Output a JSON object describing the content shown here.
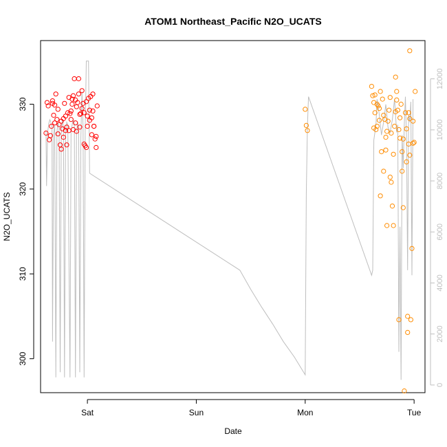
{
  "chart_data": {
    "type": "scatter",
    "title": "ATOM1 Northeast_Pacific N2O_UCATS",
    "xlabel": "Date",
    "ylabel": "N2O_UCATS",
    "x_ticks": [
      {
        "x": 1.0,
        "label": "Sat"
      },
      {
        "x": 2.0,
        "label": "Sun"
      },
      {
        "x": 3.0,
        "label": "Mon"
      },
      {
        "x": 4.0,
        "label": "Tue"
      }
    ],
    "xlim": [
      0.57,
      4.1
    ],
    "ylim": [
      296,
      337.5
    ],
    "y_ticks": [
      300,
      310,
      320,
      330
    ],
    "y2lim": [
      -300,
      13500
    ],
    "y2_ticks": [
      0,
      2000,
      4000,
      6000,
      8000,
      10000,
      12000
    ],
    "colors": {
      "series_1": "#ff0000",
      "series_2": "#ff8c00",
      "altitude": "#bebebe",
      "frame": "#000000"
    },
    "series": [
      {
        "color": "#ff0000",
        "points": [
          [
            0.62,
            326.6
          ],
          [
            0.63,
            330.2
          ],
          [
            0.64,
            329.8
          ],
          [
            0.65,
            325.8
          ],
          [
            0.66,
            326.3
          ],
          [
            0.67,
            327.4
          ],
          [
            0.68,
            330.4
          ],
          [
            0.69,
            328.7
          ],
          [
            0.7,
            327.8
          ],
          [
            0.71,
            331.2
          ],
          [
            0.72,
            328.2
          ],
          [
            0.73,
            329.4
          ],
          [
            0.74,
            327.6
          ],
          [
            0.75,
            325.2
          ],
          [
            0.76,
            324.7
          ],
          [
            0.77,
            327.1
          ],
          [
            0.78,
            328.3
          ],
          [
            0.79,
            330.1
          ],
          [
            0.8,
            328.6
          ],
          [
            0.81,
            327.3
          ],
          [
            0.82,
            329.0
          ],
          [
            0.83,
            326.9
          ],
          [
            0.84,
            328.9
          ],
          [
            0.85,
            329.2
          ],
          [
            0.86,
            330.6
          ],
          [
            0.87,
            331.0
          ],
          [
            0.88,
            333.0
          ],
          [
            0.89,
            327.8
          ],
          [
            0.9,
            329.7
          ],
          [
            0.91,
            330.2
          ],
          [
            0.92,
            333.0
          ],
          [
            0.93,
            327.3
          ],
          [
            0.94,
            328.9
          ],
          [
            0.95,
            331.6
          ],
          [
            0.96,
            330.1
          ],
          [
            0.97,
            329.0
          ],
          [
            0.98,
            325.1
          ],
          [
            0.99,
            324.9
          ],
          [
            1.0,
            327.4
          ],
          [
            1.01,
            330.7
          ],
          [
            1.02,
            329.3
          ],
          [
            1.03,
            330.9
          ],
          [
            1.04,
            328.4
          ],
          [
            1.05,
            331.2
          ],
          [
            1.06,
            327.4
          ],
          [
            1.07,
            325.9
          ],
          [
            1.08,
            324.9
          ],
          [
            1.09,
            329.8
          ],
          [
            0.73,
            326.5
          ],
          [
            0.78,
            326.1
          ],
          [
            0.83,
            330.8
          ],
          [
            0.87,
            327.0
          ],
          [
            0.92,
            331.2
          ],
          [
            0.97,
            325.3
          ],
          [
            1.02,
            328.1
          ],
          [
            1.06,
            327.4
          ],
          [
            0.76,
            328.0
          ],
          [
            0.81,
            325.2
          ],
          [
            0.86,
            330.0
          ],
          [
            0.9,
            326.8
          ],
          [
            0.95,
            329.5
          ],
          [
            1.0,
            328.6
          ],
          [
            1.04,
            326.4
          ],
          [
            0.7,
            329.9
          ],
          [
            0.8,
            326.9
          ],
          [
            0.85,
            328.2
          ],
          [
            0.89,
            330.5
          ],
          [
            0.93,
            328.8
          ],
          [
            0.99,
            330.3
          ],
          [
            1.05,
            329.2
          ],
          [
            1.08,
            326.2
          ],
          [
            0.68,
            330.1
          ]
        ]
      },
      {
        "color": "#ff8c00",
        "points": [
          [
            3.0,
            329.4
          ],
          [
            3.01,
            327.5
          ],
          [
            3.02,
            326.9
          ],
          [
            3.61,
            332.1
          ],
          [
            3.62,
            331.0
          ],
          [
            3.63,
            330.2
          ],
          [
            3.64,
            329.0
          ],
          [
            3.65,
            327.0
          ],
          [
            3.66,
            327.4
          ],
          [
            3.67,
            329.8
          ],
          [
            3.68,
            328.1
          ],
          [
            3.69,
            331.5
          ],
          [
            3.7,
            324.4
          ],
          [
            3.71,
            330.6
          ],
          [
            3.72,
            322.1
          ],
          [
            3.73,
            328.2
          ],
          [
            3.74,
            326.1
          ],
          [
            3.75,
            315.7
          ],
          [
            3.76,
            328.0
          ],
          [
            3.77,
            329.3
          ],
          [
            3.78,
            330.8
          ],
          [
            3.79,
            320.8
          ],
          [
            3.8,
            318.0
          ],
          [
            3.81,
            315.7
          ],
          [
            3.82,
            327.4
          ],
          [
            3.83,
            333.2
          ],
          [
            3.84,
            331.5
          ],
          [
            3.85,
            329.3
          ],
          [
            3.86,
            327.0
          ],
          [
            3.87,
            326.0
          ],
          [
            3.88,
            330.0
          ],
          [
            3.89,
            324.4
          ],
          [
            3.9,
            317.8
          ],
          [
            3.91,
            296.2
          ],
          [
            3.92,
            329.0
          ],
          [
            3.93,
            323.2
          ],
          [
            3.94,
            305.0
          ],
          [
            3.95,
            329.0
          ],
          [
            3.96,
            324.0
          ],
          [
            3.97,
            304.6
          ],
          [
            3.98,
            313.0
          ],
          [
            3.99,
            328.0
          ],
          [
            4.0,
            325.5
          ],
          [
            4.01,
            331.5
          ],
          [
            3.96,
            336.3
          ],
          [
            3.94,
            303.1
          ],
          [
            3.86,
            304.6
          ],
          [
            3.63,
            327.2
          ],
          [
            3.66,
            330.0
          ],
          [
            3.69,
            319.2
          ],
          [
            3.72,
            328.7
          ],
          [
            3.75,
            326.8
          ],
          [
            3.78,
            321.4
          ],
          [
            3.81,
            324.1
          ],
          [
            3.84,
            330.5
          ],
          [
            3.87,
            328.4
          ],
          [
            3.9,
            325.9
          ],
          [
            3.93,
            327.1
          ],
          [
            3.96,
            328.3
          ],
          [
            3.99,
            325.4
          ],
          [
            3.64,
            331.1
          ],
          [
            3.68,
            329.5
          ],
          [
            3.74,
            324.6
          ],
          [
            3.79,
            326.6
          ],
          [
            3.83,
            329.1
          ],
          [
            3.89,
            322.1
          ],
          [
            3.95,
            325.3
          ]
        ]
      }
    ],
    "line_series": {
      "color": "#bebebe",
      "axis": "right",
      "points": [
        [
          0.62,
          9950
        ],
        [
          0.625,
          7800
        ],
        [
          0.635,
          9900
        ],
        [
          0.645,
          10250
        ],
        [
          0.655,
          10400
        ],
        [
          0.665,
          10300
        ],
        [
          0.675,
          10100
        ],
        [
          0.68,
          1700
        ],
        [
          0.69,
          9800
        ],
        [
          0.7,
          10200
        ],
        [
          0.71,
          300
        ],
        [
          0.72,
          9900
        ],
        [
          0.73,
          10300
        ],
        [
          0.74,
          10100
        ],
        [
          0.75,
          500
        ],
        [
          0.76,
          9800
        ],
        [
          0.77,
          10400
        ],
        [
          0.78,
          10100
        ],
        [
          0.79,
          300
        ],
        [
          0.8,
          9900
        ],
        [
          0.81,
          10300
        ],
        [
          0.82,
          10200
        ],
        [
          0.84,
          300
        ],
        [
          0.85,
          9900
        ],
        [
          0.86,
          10200
        ],
        [
          0.87,
          10400
        ],
        [
          0.88,
          10250
        ],
        [
          0.89,
          300
        ],
        [
          0.9,
          9800
        ],
        [
          0.91,
          10300
        ],
        [
          0.92,
          10100
        ],
        [
          0.93,
          500
        ],
        [
          0.94,
          9700
        ],
        [
          0.95,
          11500
        ],
        [
          0.96,
          10100
        ],
        [
          0.97,
          300
        ],
        [
          0.98,
          10000
        ],
        [
          0.99,
          12700
        ],
        [
          1.0,
          12700
        ],
        [
          1.01,
          12700
        ],
        [
          1.02,
          8300
        ],
        [
          2.4,
          4500
        ],
        [
          2.5,
          3750
        ],
        [
          2.6,
          3050
        ],
        [
          2.7,
          2400
        ],
        [
          2.8,
          1700
        ],
        [
          2.9,
          1100
        ],
        [
          3.0,
          400
        ],
        [
          3.01,
          7500
        ],
        [
          3.02,
          10100
        ],
        [
          3.03,
          11300
        ],
        [
          3.61,
          4300
        ],
        [
          3.62,
          4500
        ],
        [
          3.63,
          9600
        ],
        [
          3.65,
          10200
        ],
        [
          3.66,
          11200
        ],
        [
          3.68,
          10600
        ],
        [
          3.7,
          9800
        ],
        [
          3.72,
          10300
        ],
        [
          3.74,
          11000
        ],
        [
          3.76,
          10100
        ],
        [
          3.78,
          9900
        ],
        [
          3.8,
          10400
        ],
        [
          3.82,
          11200
        ],
        [
          3.84,
          9900
        ],
        [
          3.85,
          10200
        ],
        [
          3.86,
          1300
        ],
        [
          3.87,
          6200
        ],
        [
          3.88,
          200
        ],
        [
          3.89,
          9800
        ],
        [
          3.9,
          8500
        ],
        [
          3.91,
          10200
        ],
        [
          3.92,
          11300
        ],
        [
          3.93,
          9700
        ],
        [
          3.94,
          4500
        ],
        [
          3.95,
          10600
        ],
        [
          3.96,
          10300
        ],
        [
          3.97,
          11100
        ],
        [
          3.98,
          4300
        ],
        [
          3.99,
          11200
        ]
      ]
    }
  }
}
